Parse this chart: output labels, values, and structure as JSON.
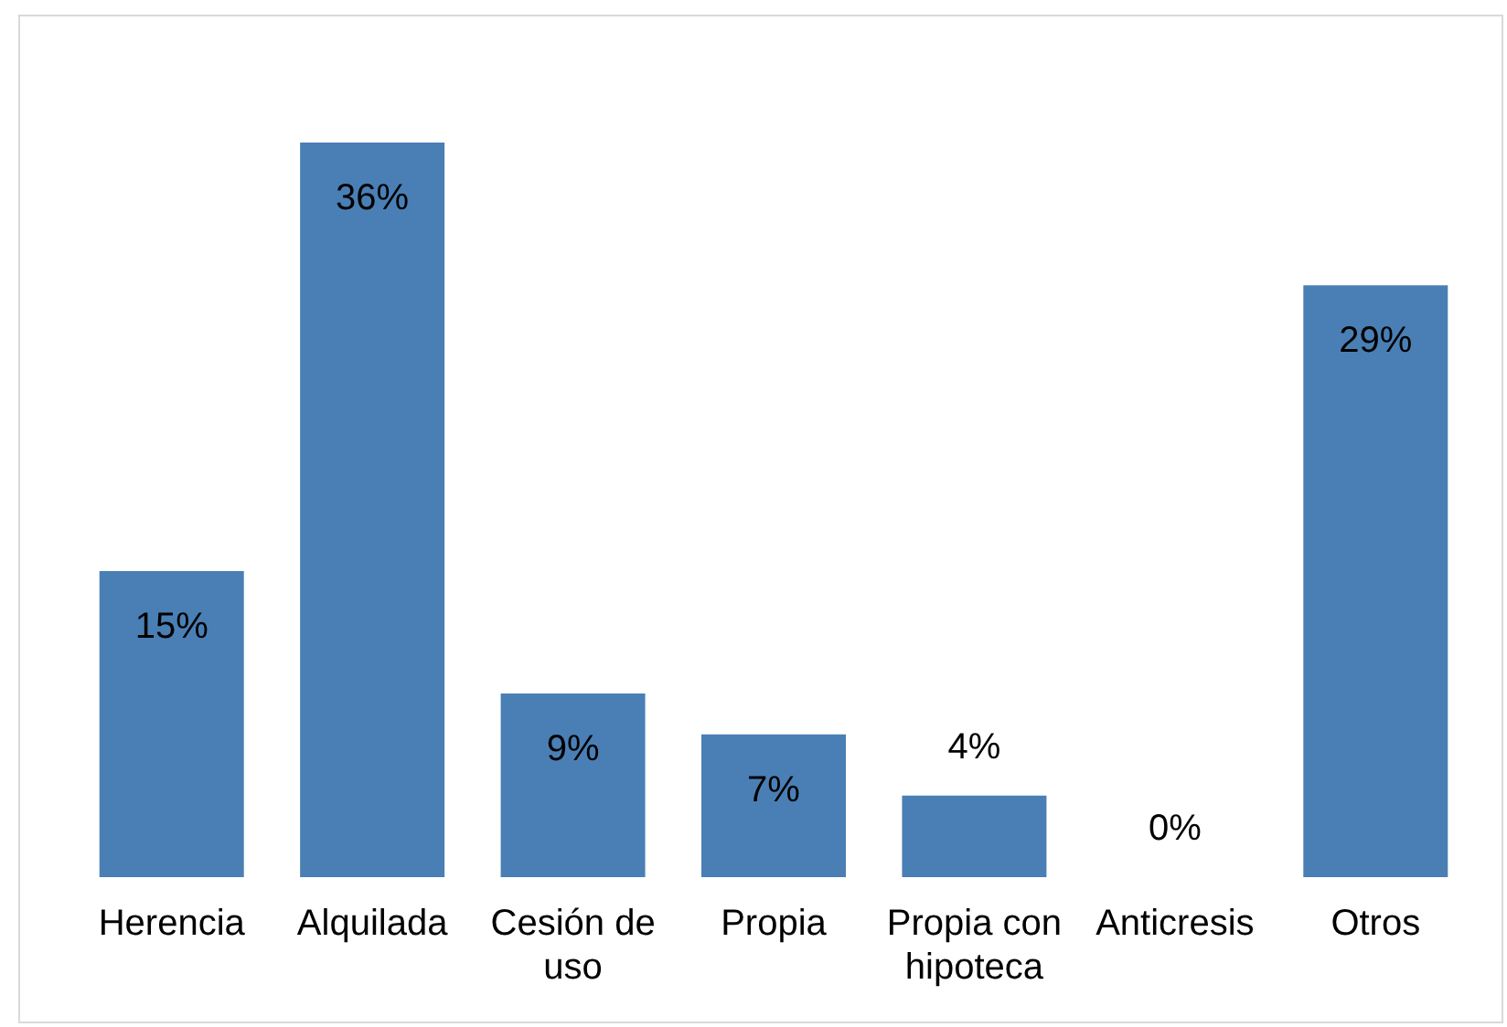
{
  "chart_data": {
    "type": "bar",
    "categories": [
      "Herencia",
      "Alquilada",
      "Cesión de uso",
      "Propia",
      "Propia con hipoteca",
      "Anticresis",
      "Otros"
    ],
    "values": [
      15,
      36,
      9,
      7,
      4,
      0,
      29
    ],
    "value_labels": [
      "15%",
      "36%",
      "9%",
      "7%",
      "4%",
      "0%",
      "29%"
    ],
    "color": "#4a7fb5",
    "grid": false,
    "legend": false
  }
}
